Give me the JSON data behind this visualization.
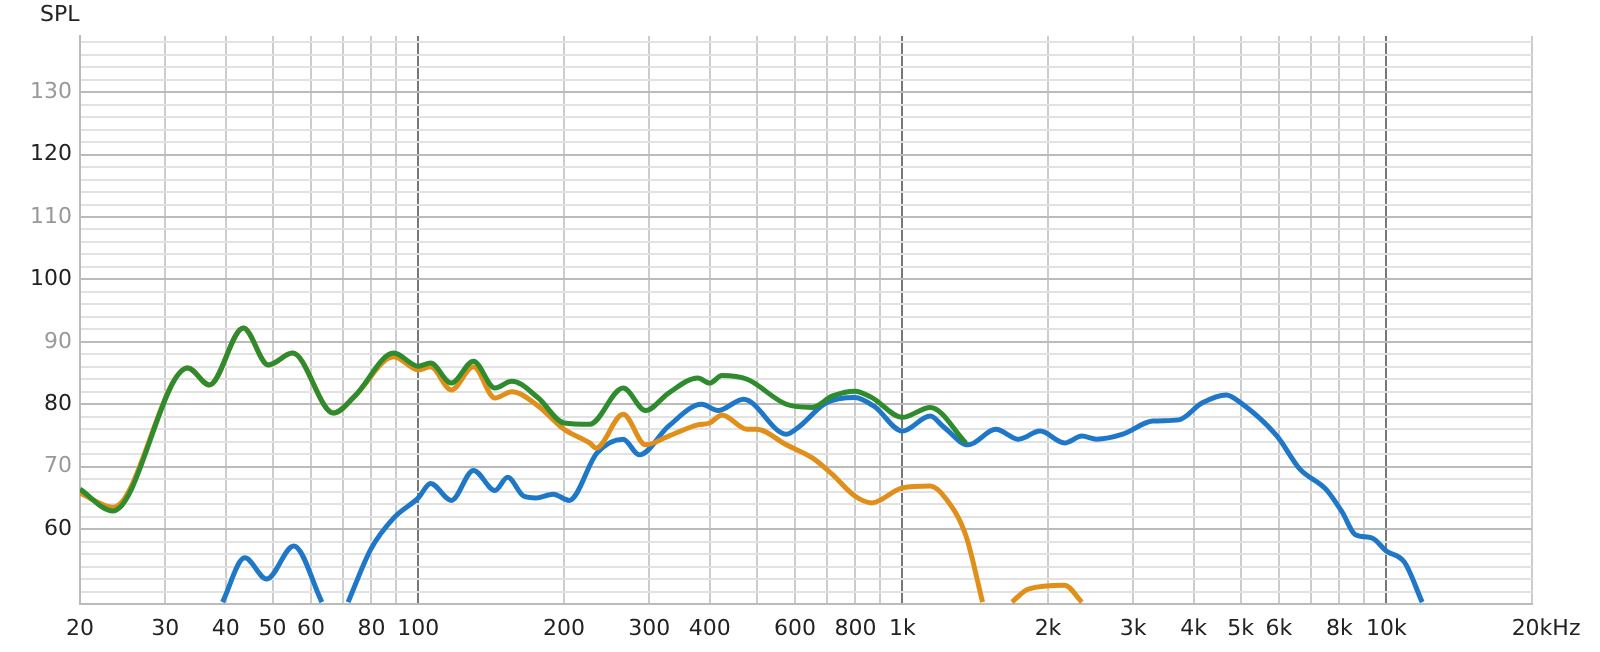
{
  "chart_data": {
    "type": "line",
    "ylabel": "SPL",
    "log": "x",
    "grid": true,
    "legend": false,
    "marker": "none",
    "line_style": "solid",
    "xlim": [
      20,
      20000
    ],
    "ylim": [
      48,
      139
    ],
    "xticks": [
      20,
      30,
      40,
      50,
      60,
      {
        "value": 70,
        "label": null
      },
      80,
      {
        "value": 90,
        "label": null
      },
      100,
      200,
      300,
      400,
      {
        "value": 500,
        "label": null
      },
      600,
      {
        "value": 700,
        "label": null
      },
      800,
      {
        "value": 900,
        "label": null
      },
      {
        "value": 1000,
        "label": "1k"
      },
      {
        "value": 2000,
        "label": "2k"
      },
      {
        "value": 3000,
        "label": "3k"
      },
      {
        "value": 4000,
        "label": "4k"
      },
      {
        "value": 5000,
        "label": "5k"
      },
      {
        "value": 6000,
        "label": "6k"
      },
      {
        "value": 7000,
        "label": null
      },
      {
        "value": 8000,
        "label": "8k"
      },
      {
        "value": 9000,
        "label": null
      },
      {
        "value": 10000,
        "label": "10k"
      },
      {
        "value": 20000,
        "label": "20k"
      }
    ],
    "xlabel": "Hz",
    "yticks": [
      {
        "value": 50,
        "label": null
      },
      {
        "value": 52,
        "label": null
      },
      {
        "value": 54,
        "label": null
      },
      {
        "value": 56,
        "label": null
      },
      {
        "value": 58,
        "label": null
      },
      60,
      {
        "value": 62,
        "label": null
      },
      {
        "value": 64,
        "label": null
      },
      {
        "value": 66,
        "label": null
      },
      {
        "value": 68,
        "label": null
      },
      70,
      {
        "value": 72,
        "label": null
      },
      {
        "value": 74,
        "label": null
      },
      {
        "value": 76,
        "label": null
      },
      {
        "value": 78,
        "label": null
      },
      80,
      {
        "value": 82,
        "label": null
      },
      {
        "value": 84,
        "label": null
      },
      {
        "value": 86,
        "label": null
      },
      {
        "value": 88,
        "label": null
      },
      90,
      {
        "value": 92,
        "label": null
      },
      {
        "value": 94,
        "label": null
      },
      {
        "value": 96,
        "label": null
      },
      {
        "value": 98,
        "label": null
      },
      100,
      {
        "value": 102,
        "label": null
      },
      {
        "value": 104,
        "label": null
      },
      {
        "value": 106,
        "label": null
      },
      {
        "value": 108,
        "label": null
      },
      110,
      {
        "value": 112,
        "label": null
      },
      {
        "value": 114,
        "label": null
      },
      {
        "value": 116,
        "label": null
      },
      {
        "value": 118,
        "label": null
      },
      120,
      {
        "value": 122,
        "label": null
      },
      {
        "value": 124,
        "label": null
      },
      {
        "value": 126,
        "label": null
      },
      {
        "value": 128,
        "label": null
      },
      130,
      {
        "value": 132,
        "label": null
      },
      {
        "value": 134,
        "label": null
      },
      {
        "value": 136,
        "label": null
      },
      {
        "value": 138,
        "label": null
      }
    ],
    "series": [
      {
        "color": "#2e8b2e",
        "x": [
          20,
          23.4,
          33.4,
          37,
          43.5,
          49,
          55,
          66.8,
          73.9,
          89,
          100,
          106,
          117,
          130,
          144,
          156,
          177,
          200,
          226,
          265,
          295,
          329,
          378,
          400,
          424,
          478,
          576,
          652,
          716,
          798,
          864,
          1000,
          1142,
          1354
        ],
        "values": [
          66.4,
          62.9,
          85.8,
          83.1,
          92.2,
          86.3,
          88.2,
          78.6,
          81.3,
          88.2,
          86.1,
          86.6,
          83.4,
          86.9,
          82.6,
          83.7,
          81.0,
          77.0,
          76.8,
          82.6,
          79.0,
          81.8,
          84.2,
          83.4,
          84.6,
          84.0,
          80.0,
          79.5,
          81.3,
          82.1,
          81.1,
          77.9,
          79.5,
          73.8
        ]
      },
      {
        "color": "#e0901a",
        "x": [
          20,
          23.4,
          33.4,
          37,
          43.5,
          49,
          55,
          66.8,
          73.9,
          89,
          100,
          106,
          117,
          130,
          144,
          156,
          177,
          200,
          226,
          233,
          265,
          295,
          329,
          378,
          400,
          424,
          478,
          500,
          576,
          652,
          716,
          798,
          864,
          1000,
          1142,
          1233,
          1354,
          1465,
          1570,
          1685,
          1821,
          2163,
          2350
        ],
        "values": [
          65.8,
          63.5,
          85.8,
          83.1,
          92.2,
          86.3,
          88.2,
          78.6,
          81.3,
          87.6,
          85.5,
          86,
          82.3,
          86,
          81,
          82.0,
          79.7,
          76.0,
          73.8,
          73.0,
          78.4,
          73.5,
          74.9,
          76.7,
          77.0,
          78.3,
          76.0,
          76.0,
          73.5,
          71.4,
          68.8,
          65.3,
          64.2,
          66.6,
          66.9,
          64.8,
          58.9,
          48.3,
          null,
          48.3,
          50.4,
          51.0,
          48.3
        ]
      },
      {
        "color": "#1f77c8",
        "x": [
          39.4,
          43.8,
          48.6,
          55.3,
          63.2,
          67,
          71.6,
          79.8,
          89,
          100,
          106,
          117,
          130,
          144,
          153,
          165,
          175,
          190,
          205,
          234,
          265,
          286,
          329,
          385,
          416,
          470,
          576,
          612,
          695,
          798,
          877,
          1000,
          1142,
          1216,
          1368,
          1560,
          1738,
          1926,
          2163,
          2350,
          2520,
          2855,
          3290,
          3725,
          4160,
          4670,
          5010,
          5946,
          6630,
          7500,
          8110,
          8630,
          9330,
          10000,
          10900,
          11860
        ],
        "values": [
          48.3,
          55.4,
          52.0,
          57.3,
          48.3,
          null,
          48.3,
          56.8,
          61.8,
          65.0,
          67.3,
          64.6,
          69.4,
          66.2,
          68.3,
          65.3,
          65.0,
          65.6,
          64.6,
          72.2,
          74.4,
          71.9,
          76.5,
          80.0,
          79.0,
          80.8,
          75.2,
          76.4,
          80.2,
          81.1,
          79.6,
          75.7,
          78.1,
          76.4,
          73.5,
          76.0,
          74.4,
          75.7,
          73.8,
          74.9,
          74.4,
          75.2,
          77.3,
          77.5,
          80.2,
          81.5,
          80.2,
          74.9,
          69.6,
          66.4,
          62.7,
          59.1,
          58.6,
          56.5,
          54.7,
          48.3
        ]
      }
    ]
  }
}
